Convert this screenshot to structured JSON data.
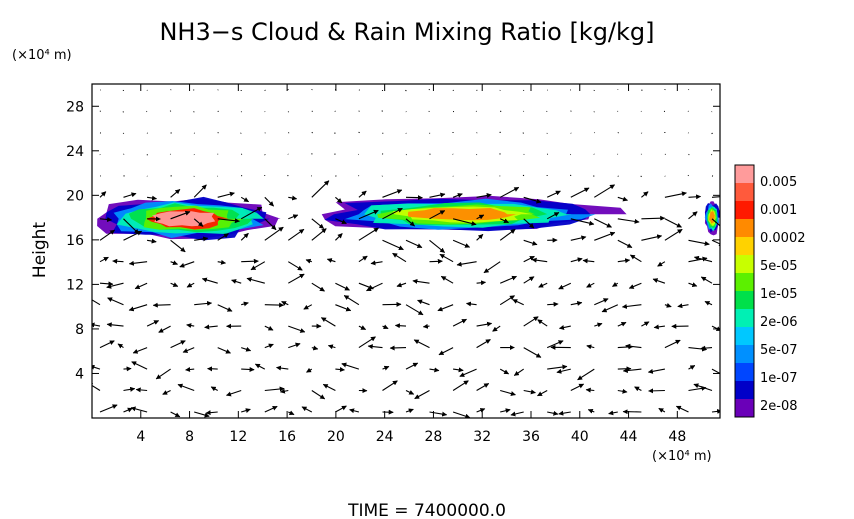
{
  "chart_data": {
    "type": "heatmap",
    "title": "NH3−s Cloud & Rain Mixing Ratio [kg/kg]",
    "xlabel": "",
    "ylabel": "Height",
    "x_unit": "(×10⁴ m)",
    "y_unit": "(×10⁴ m)",
    "xlim": [
      0,
      51.5
    ],
    "ylim": [
      0,
      30
    ],
    "x_ticks": [
      "4",
      "8",
      "12",
      "16",
      "20",
      "24",
      "28",
      "32",
      "36",
      "40",
      "44",
      "48"
    ],
    "x_tick_values": [
      4,
      8,
      12,
      16,
      20,
      24,
      28,
      32,
      36,
      40,
      44,
      48
    ],
    "y_ticks": [
      "4",
      "8",
      "12",
      "16",
      "20",
      "24",
      "28"
    ],
    "y_tick_values": [
      4,
      8,
      12,
      16,
      20,
      24,
      28
    ],
    "footer": "TIME = 7400000.0",
    "colorbar": {
      "labels": [
        "0.005",
        "0.001",
        "0.0002",
        "5e-05",
        "1e-05",
        "2e-06",
        "5e-07",
        "1e-07",
        "2e-08"
      ],
      "colors": [
        "#ff9b9b",
        "#ff5a3c",
        "#ff1a00",
        "#ff8a00",
        "#ffd200",
        "#c8ff00",
        "#5cf000",
        "#00e04a",
        "#00f0b4",
        "#00c8ff",
        "#0090ff",
        "#0046ff",
        "#0000c8",
        "#6a00b8"
      ]
    },
    "series": [
      {
        "type": "cloud_band",
        "segments": [
          {
            "x": [
              0.0,
              15.5
            ],
            "y": [
              16.0,
              19.8
            ],
            "max_level": "0.005"
          },
          {
            "x": [
              18.2,
              42.5
            ],
            "y": [
              16.8,
              19.8
            ],
            "max_level": "0.0002"
          },
          {
            "x": [
              50.2,
              51.5
            ],
            "y": [
              16.5,
              19.5
            ],
            "max_level": "0.0002"
          }
        ]
      },
      {
        "type": "wind_vectors",
        "description_level": "quiver field over full domain"
      }
    ],
    "grid": false,
    "legend": "right"
  }
}
